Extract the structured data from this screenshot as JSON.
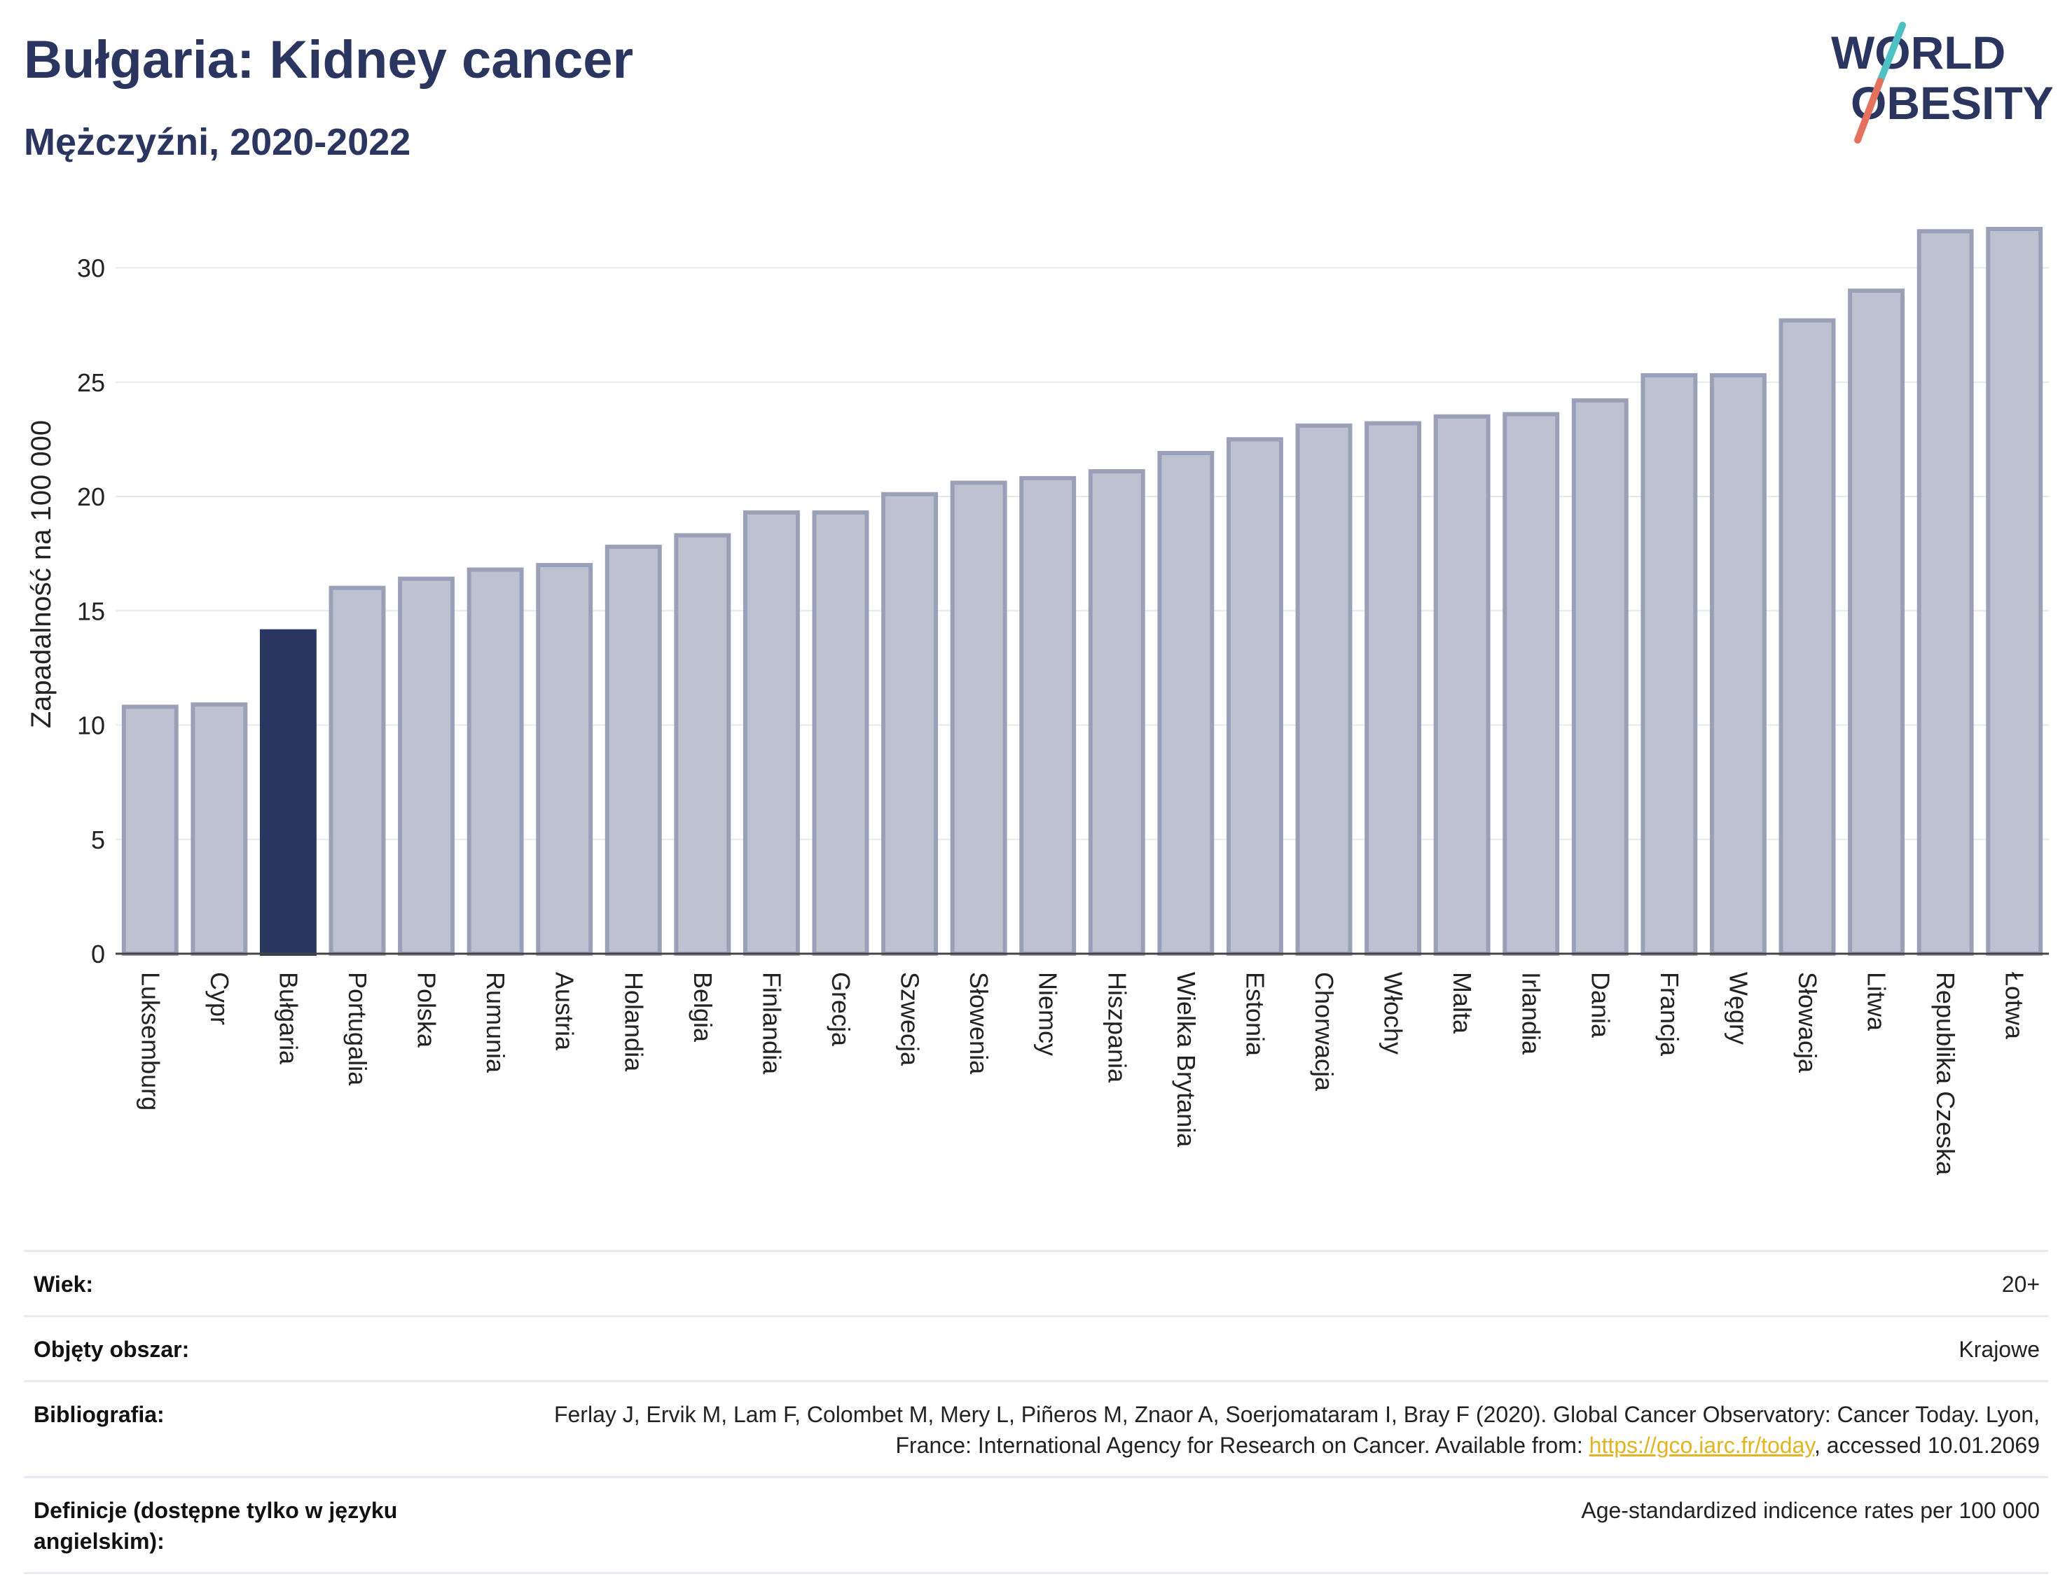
{
  "header": {
    "title": "Bułgaria: Kidney cancer",
    "subtitle": "Mężczyźni, 2020-2022"
  },
  "logo": {
    "line1": "WORLD",
    "line2": "OBESITY",
    "slash_colors": [
      "#4fc1c4",
      "#e5725e"
    ],
    "text_color": "#2b3660"
  },
  "chart_data": {
    "type": "bar",
    "ylabel": "Zapadalność na 100 000",
    "xlabel": "",
    "ylim": [
      0,
      32
    ],
    "yticks": [
      0,
      5,
      10,
      15,
      20,
      25,
      30
    ],
    "grid": true,
    "highlight": "Bułgaria",
    "colors": {
      "default": "#bec1d0",
      "default_border": "#9aa0b8",
      "highlight": "#2b3660"
    },
    "categories": [
      "Luksemburg",
      "Cypr",
      "Bułgaria",
      "Portugalia",
      "Polska",
      "Rumunia",
      "Austria",
      "Holandia",
      "Belgia",
      "Finlandia",
      "Grecja",
      "Szwecja",
      "Słowenia",
      "Niemcy",
      "Hiszpania",
      "Wielka Brytania",
      "Estonia",
      "Chorwacja",
      "Włochy",
      "Malta",
      "Irlandia",
      "Dania",
      "Francja",
      "Węgry",
      "Słowacja",
      "Litwa",
      "Republika Czeska",
      "Łotwa"
    ],
    "values": [
      10.8,
      10.9,
      14.1,
      16.0,
      16.4,
      16.8,
      17.0,
      17.8,
      18.3,
      19.3,
      19.3,
      20.1,
      20.6,
      20.8,
      21.1,
      21.9,
      22.5,
      23.1,
      23.2,
      23.5,
      23.6,
      24.2,
      25.3,
      25.3,
      27.7,
      29.0,
      31.6,
      31.7
    ]
  },
  "meta": [
    {
      "label": "Wiek:",
      "value": "20+"
    },
    {
      "label": "Objęty obszar:",
      "value": "Krajowe"
    },
    {
      "label": "Bibliografia:",
      "value_before": "Ferlay J, Ervik M, Lam F, Colombet M, Mery L, Piñeros M, Znaor A, Soerjomataram I, Bray F (2020). Global Cancer Observatory: Cancer Today. Lyon, France: International Agency for Research on Cancer. Available from: ",
      "link": "https://gco.iarc.fr/today",
      "value_after": ", accessed 10.01.2069"
    },
    {
      "label": "Definicje (dostępne tylko w języku angielskim):",
      "value": "Age-standardized indicence rates per 100 000"
    }
  ]
}
